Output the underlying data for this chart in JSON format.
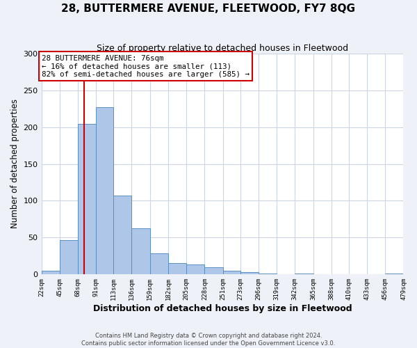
{
  "title": "28, BUTTERMERE AVENUE, FLEETWOOD, FY7 8QG",
  "subtitle": "Size of property relative to detached houses in Fleetwood",
  "xlabel": "Distribution of detached houses by size in Fleetwood",
  "ylabel": "Number of detached properties",
  "bin_edges": [
    22,
    45,
    68,
    91,
    113,
    136,
    159,
    182,
    205,
    228,
    251,
    273,
    296,
    319,
    342,
    365,
    388,
    410,
    433,
    456,
    479
  ],
  "bin_heights": [
    5,
    47,
    204,
    227,
    107,
    63,
    29,
    15,
    14,
    10,
    5,
    3,
    1,
    0,
    1,
    0,
    0,
    0,
    0,
    1
  ],
  "bar_color": "#aec6e8",
  "bar_edge_color": "#5a8fc0",
  "vline_x": 76,
  "vline_color": "#cc0000",
  "annotation_title": "28 BUTTERMERE AVENUE: 76sqm",
  "annotation_line1": "← 16% of detached houses are smaller (113)",
  "annotation_line2": "82% of semi-detached houses are larger (585) →",
  "annotation_box_color": "#ffffff",
  "annotation_box_edge": "#cc0000",
  "ylim": [
    0,
    300
  ],
  "tick_labels": [
    "22sqm",
    "45sqm",
    "68sqm",
    "91sqm",
    "113sqm",
    "136sqm",
    "159sqm",
    "182sqm",
    "205sqm",
    "228sqm",
    "251sqm",
    "273sqm",
    "296sqm",
    "319sqm",
    "342sqm",
    "365sqm",
    "388sqm",
    "410sqm",
    "433sqm",
    "456sqm",
    "479sqm"
  ],
  "footer_line1": "Contains HM Land Registry data © Crown copyright and database right 2024.",
  "footer_line2": "Contains public sector information licensed under the Open Government Licence v3.0.",
  "background_color": "#eef2f8",
  "plot_background_color": "#ffffff",
  "grid_color": "#cdd5e5",
  "title_fontsize": 11,
  "subtitle_fontsize": 9,
  "xlabel_fontsize": 9,
  "ylabel_fontsize": 8.5,
  "ytick_labels": [
    0,
    50,
    100,
    150,
    200,
    250,
    300
  ]
}
